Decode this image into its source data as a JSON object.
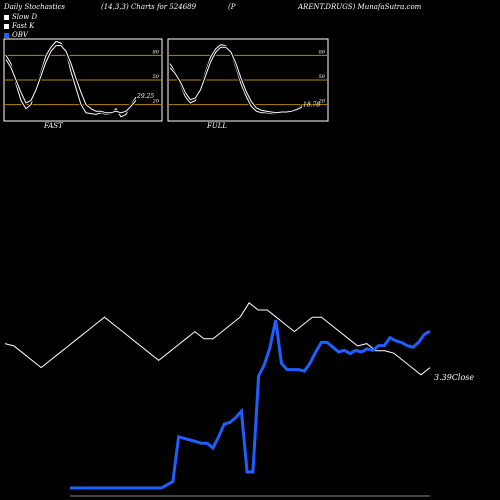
{
  "header": {
    "left": "Daily Stochastics",
    "params": "(14,3,3) Charts for 524689",
    "ticker_a": "(P",
    "ticker_b": "ARENT.DRUGS) MunafaSutra.com"
  },
  "legend": [
    {
      "label": "Slow  D",
      "color": "#ffffff"
    },
    {
      "label": "Fast K",
      "color": "#ffffff"
    },
    {
      "label": "OBV",
      "color": "#1f5fff"
    }
  ],
  "colors": {
    "band": "#b8860b",
    "obv": "#1f5fff",
    "line": "#ffffff"
  },
  "chart_data": [
    {
      "type": "line",
      "title": "FAST",
      "ylim": [
        0,
        100
      ],
      "levels": [
        20,
        50,
        80
      ],
      "tick_labels": [
        "80",
        "50",
        "20"
      ],
      "last_value_label": "29.25",
      "series": [
        {
          "values": [
            80,
            70,
            45,
            25,
            15,
            20,
            40,
            60,
            80,
            90,
            97,
            95,
            85,
            60,
            40,
            20,
            10,
            9,
            8,
            10,
            8,
            9,
            15,
            5,
            8,
            20,
            29
          ]
        },
        {
          "values": [
            75,
            65,
            50,
            35,
            22,
            25,
            38,
            55,
            72,
            85,
            92,
            92,
            85,
            70,
            52,
            35,
            20,
            15,
            12,
            12,
            10,
            10,
            12,
            10,
            12,
            18,
            25
          ]
        }
      ]
    },
    {
      "type": "line",
      "title": "FULL",
      "ylim": [
        0,
        100
      ],
      "levels": [
        20,
        50,
        80
      ],
      "tick_labels": [
        "80",
        "50",
        "20"
      ],
      "last_value_label": "18.78",
      "series": [
        {
          "values": [
            70,
            60,
            45,
            30,
            22,
            25,
            40,
            60,
            78,
            88,
            93,
            92,
            82,
            65,
            45,
            30,
            18,
            12,
            10,
            10,
            9,
            9,
            11,
            10,
            12,
            15,
            19
          ]
        },
        {
          "values": [
            65,
            58,
            48,
            35,
            26,
            28,
            38,
            55,
            72,
            84,
            90,
            90,
            84,
            70,
            52,
            36,
            24,
            16,
            13,
            12,
            11,
            10,
            11,
            11,
            12,
            14,
            17
          ]
        }
      ]
    },
    {
      "type": "line",
      "close_label": "3.39Close",
      "series": [
        {
          "values": [
            3.61,
            3.6,
            3.57,
            3.54,
            3.51,
            3.54,
            3.57,
            3.6,
            3.63,
            3.66,
            3.69,
            3.72,
            3.69,
            3.66,
            3.63,
            3.6,
            3.57,
            3.54,
            3.57,
            3.6,
            3.63,
            3.66,
            3.63,
            3.63,
            3.66,
            3.69,
            3.72,
            3.78,
            3.75,
            3.75,
            3.72,
            3.69,
            3.66,
            3.69,
            3.72,
            3.72,
            3.69,
            3.66,
            3.63,
            3.6,
            3.61,
            3.58,
            3.58,
            3.57,
            3.54,
            3.51,
            3.48,
            3.51
          ]
        },
        {
          "values": [
            2.12,
            2.12,
            2.12,
            2.12,
            2.12,
            2.12,
            2.12,
            2.12,
            2.12,
            2.12,
            2.12,
            2.12,
            2.12,
            2.12,
            2.12,
            2.12,
            2.12,
            2.14,
            2.16,
            2.44,
            2.43,
            2.42,
            2.41,
            2.4,
            2.4,
            2.37,
            2.44,
            2.52,
            2.53,
            2.56,
            2.6,
            2.22,
            2.22,
            2.82,
            2.89,
            3.0,
            3.17,
            2.9,
            2.86,
            2.86,
            2.86,
            2.85,
            2.9,
            2.97,
            3.03,
            3.03,
            3.0,
            2.97,
            2.98,
            2.96,
            2.98,
            2.97,
            2.99,
            2.98,
            3.01,
            3.01,
            3.06,
            3.04,
            3.03,
            3.01,
            3.0,
            3.03,
            3.08,
            3.1
          ]
        }
      ]
    }
  ]
}
